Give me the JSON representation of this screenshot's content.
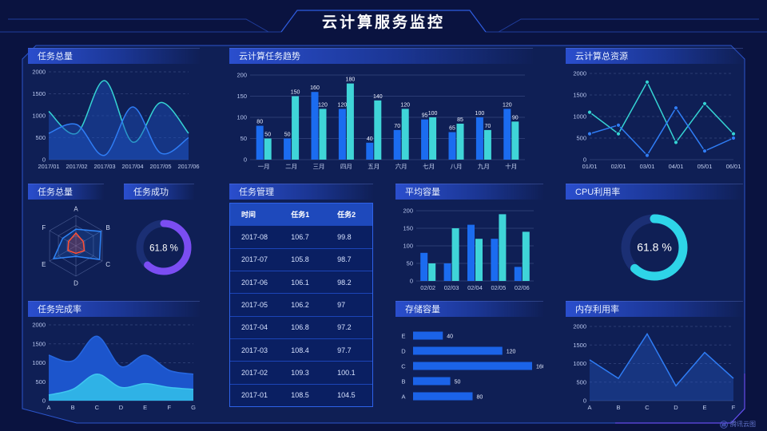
{
  "page_title": "云计算服务监控",
  "watermark": "腾讯云图",
  "colors": {
    "background": "#0a1340",
    "panel_fill": "#0f1f55",
    "accent_blue": "#1b6cf0",
    "accent_cyan": "#3fd5d8",
    "accent_purple": "#7b4df2",
    "accent_red": "#ff4f35",
    "frame_line": "#2c55cc",
    "axis_text": "#b9c7ee"
  },
  "table": {
    "title": "任务管理",
    "headers": [
      "时间",
      "任务1",
      "任务2"
    ],
    "rows": [
      [
        "2017-08",
        "106.7",
        "99.8"
      ],
      [
        "2017-07",
        "105.8",
        "98.7"
      ],
      [
        "2017-06",
        "106.1",
        "98.2"
      ],
      [
        "2017-05",
        "106.2",
        "97"
      ],
      [
        "2017-04",
        "106.8",
        "97.2"
      ],
      [
        "2017-03",
        "108.4",
        "97.7"
      ],
      [
        "2017-02",
        "109.3",
        "100.1"
      ],
      [
        "2017-01",
        "108.5",
        "104.5"
      ]
    ]
  },
  "chart_data": [
    {
      "id": "task-total-line",
      "type": "area-smooth",
      "title": "任务总量",
      "x": [
        "2017/01",
        "2017/02",
        "2017/03",
        "2017/04",
        "2017/05",
        "2017/06"
      ],
      "series": [
        {
          "name": "cyan",
          "color": "#35d3d3",
          "fill": "rgba(28,80,190,0.45)",
          "values": [
            1100,
            600,
            1800,
            400,
            1300,
            600
          ]
        },
        {
          "name": "blue",
          "color": "#2f7df5",
          "fill": "rgba(28,80,190,0.45)",
          "values": [
            600,
            800,
            100,
            1200,
            150,
            500
          ]
        }
      ],
      "ylim": [
        0,
        2000
      ],
      "yticks": [
        0,
        500,
        1000,
        1500,
        2000
      ],
      "grid": "dashed"
    },
    {
      "id": "task-trend-bar",
      "type": "bar",
      "title": "云计算任务趋势",
      "categories": [
        "一月",
        "二月",
        "三月",
        "四月",
        "五月",
        "六月",
        "七月",
        "八月",
        "九月",
        "十月"
      ],
      "series": [
        {
          "name": "blue",
          "color": "#1b6cf0",
          "values": [
            80,
            50,
            160,
            120,
            40,
            70,
            95,
            65,
            100,
            120
          ]
        },
        {
          "name": "cyan",
          "color": "#3fd5d8",
          "values": [
            50,
            150,
            120,
            180,
            140,
            120,
            100,
            85,
            70,
            90
          ]
        }
      ],
      "ylim": [
        0,
        200
      ],
      "yticks": [
        0,
        50,
        100,
        150,
        200
      ],
      "show_values": true
    },
    {
      "id": "cloud-resources-line",
      "type": "line",
      "title": "云计算总资源",
      "x": [
        "01/01",
        "02/01",
        "03/01",
        "04/01",
        "05/01",
        "06/01"
      ],
      "series": [
        {
          "name": "cyan",
          "color": "#35d3d3",
          "values": [
            1100,
            600,
            1800,
            400,
            1300,
            600
          ]
        },
        {
          "name": "blue",
          "color": "#2f7df5",
          "values": [
            600,
            800,
            100,
            1200,
            200,
            500
          ]
        }
      ],
      "ylim": [
        0,
        2000
      ],
      "yticks": [
        0,
        500,
        1000,
        1500,
        2000
      ],
      "markers": true,
      "grid": "dashed"
    },
    {
      "id": "task-radar",
      "type": "radar",
      "title": "任务总量",
      "axes": [
        "A",
        "B",
        "C",
        "D",
        "E",
        "F"
      ],
      "series": [
        {
          "name": "blue",
          "color": "#2f83f5",
          "fill": "rgba(47,131,245,0.18)",
          "values": [
            55,
            95,
            90,
            35,
            85,
            50
          ]
        },
        {
          "name": "red",
          "color": "#ff4f35",
          "fill": "rgba(255,79,53,0.22)",
          "values": [
            42,
            28,
            32,
            25,
            30,
            28
          ]
        }
      ],
      "max": 100
    },
    {
      "id": "task-success-gauge",
      "type": "gauge",
      "title": "任务成功",
      "value": 61.8,
      "unit": "%",
      "color": "#7b4df2"
    },
    {
      "id": "avg-capacity-bar",
      "type": "bar",
      "title": "平均容量",
      "categories": [
        "02/02",
        "02/03",
        "02/04",
        "02/05",
        "02/06"
      ],
      "series": [
        {
          "name": "blue",
          "color": "#1b6cf0",
          "values": [
            80,
            50,
            160,
            120,
            40
          ]
        },
        {
          "name": "cyan",
          "color": "#3fd5d8",
          "values": [
            50,
            150,
            120,
            190,
            140
          ]
        }
      ],
      "ylim": [
        0,
        200
      ],
      "yticks": [
        0,
        50,
        100,
        150,
        200
      ],
      "show_values": false
    },
    {
      "id": "cpu-gauge",
      "type": "gauge",
      "title": "CPU利用率",
      "value": 61.8,
      "unit": "%",
      "color": "#2ed5e8"
    },
    {
      "id": "completion-area",
      "type": "area-smooth",
      "title": "任务完成率",
      "x": [
        "A",
        "B",
        "C",
        "D",
        "E",
        "F",
        "G"
      ],
      "series": [
        {
          "name": "blue",
          "color": "#2667e0",
          "fill": "#1c55cc",
          "values": [
            1200,
            1050,
            1700,
            900,
            1200,
            800,
            700
          ]
        },
        {
          "name": "cyan",
          "color": "#3fc6f0",
          "fill": "#2fb2e6",
          "values": [
            150,
            300,
            700,
            350,
            450,
            350,
            300
          ]
        }
      ],
      "ylim": [
        0,
        2000
      ],
      "yticks": [
        0,
        500,
        1000,
        1500,
        2000
      ],
      "grid": "dashed"
    },
    {
      "id": "storage-hbar",
      "type": "hbar",
      "title": "存储容量",
      "categories": [
        "E",
        "D",
        "C",
        "B",
        "A"
      ],
      "values": [
        40,
        120,
        160,
        50,
        80
      ],
      "xmax": 160,
      "color": "#1b63e8"
    },
    {
      "id": "memory-line",
      "type": "line-area",
      "title": "内存利用率",
      "x": [
        "A",
        "B",
        "C",
        "D",
        "E",
        "F"
      ],
      "series": [
        {
          "name": "blue",
          "color": "#2f7df5",
          "fill": "rgba(38,90,200,0.38)",
          "values": [
            1100,
            600,
            1800,
            400,
            1300,
            600
          ]
        }
      ],
      "ylim": [
        0,
        2000
      ],
      "yticks": [
        0,
        500,
        1000,
        1500,
        2000
      ],
      "grid": "dashed"
    }
  ]
}
